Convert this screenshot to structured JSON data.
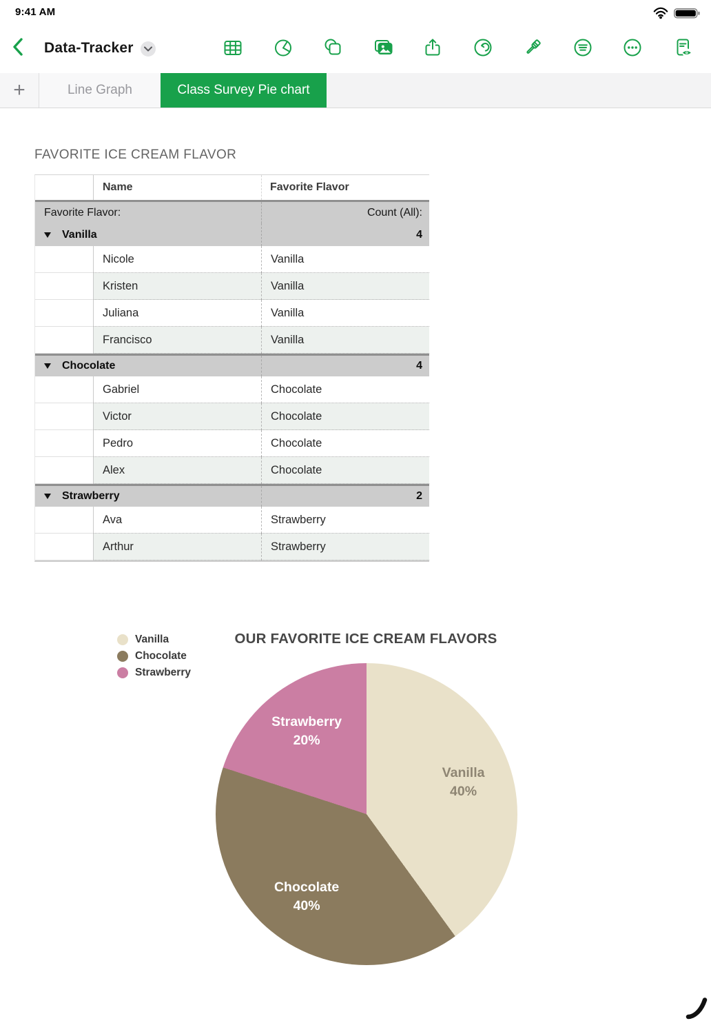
{
  "status_bar": {
    "time": "9:41 AM",
    "icons": [
      "wifi-icon",
      "battery-icon"
    ]
  },
  "toolbar": {
    "back_icon": "chevron-left-icon",
    "title": "Data-Tracker",
    "title_menu_icon": "chevron-down-icon",
    "icons": [
      "table-icon",
      "chart-icon",
      "shapes-icon",
      "media-icon",
      "share-icon",
      "undo-icon",
      "format-brush-icon",
      "filter-icon",
      "more-icon",
      "document-view-icon"
    ]
  },
  "tabs": {
    "add_label": "+",
    "items": [
      {
        "label": "Line Graph",
        "active": false
      },
      {
        "label": "Class Survey Pie chart",
        "active": true
      }
    ]
  },
  "sheet": {
    "table_title": "FAVORITE ICE CREAM FLAVOR",
    "table": {
      "header": {
        "name_label": "Name",
        "flavor_label": "Favorite Flavor"
      },
      "category_label": "Favorite Flavor:",
      "count_label": "Count (All):",
      "groups": [
        {
          "name": "Vanilla",
          "count": "4",
          "rows": [
            {
              "name": "Nicole",
              "flavor": "Vanilla"
            },
            {
              "name": "Kristen",
              "flavor": "Vanilla"
            },
            {
              "name": "Juliana",
              "flavor": "Vanilla"
            },
            {
              "name": "Francisco",
              "flavor": "Vanilla"
            }
          ]
        },
        {
          "name": "Chocolate",
          "count": "4",
          "rows": [
            {
              "name": "Gabriel",
              "flavor": "Chocolate"
            },
            {
              "name": "Victor",
              "flavor": "Chocolate"
            },
            {
              "name": "Pedro",
              "flavor": "Chocolate"
            },
            {
              "name": "Alex",
              "flavor": "Chocolate"
            }
          ]
        },
        {
          "name": "Strawberry",
          "count": "2",
          "rows": [
            {
              "name": "Ava",
              "flavor": "Strawberry"
            },
            {
              "name": "Arthur",
              "flavor": "Strawberry"
            }
          ]
        }
      ]
    }
  },
  "chart_data": {
    "type": "pie",
    "title": "OUR FAVORITE ICE CREAM FLAVORS",
    "legend_position": "left",
    "slices": [
      {
        "label": "Vanilla",
        "value": 40,
        "pct_label": "40%",
        "color": "#e9e1c9",
        "label_color": "#8e8573"
      },
      {
        "label": "Chocolate",
        "value": 40,
        "pct_label": "40%",
        "color": "#8b7b5e",
        "label_color": "#ffffff"
      },
      {
        "label": "Strawberry",
        "value": 20,
        "pct_label": "20%",
        "color": "#cb7ea3",
        "label_color": "#ffffff"
      }
    ]
  },
  "colors": {
    "accent_green": "#18A14B",
    "band_gray": "#cccccc",
    "alt_row": "#edf1ee",
    "pen_stroke": "#111111"
  }
}
